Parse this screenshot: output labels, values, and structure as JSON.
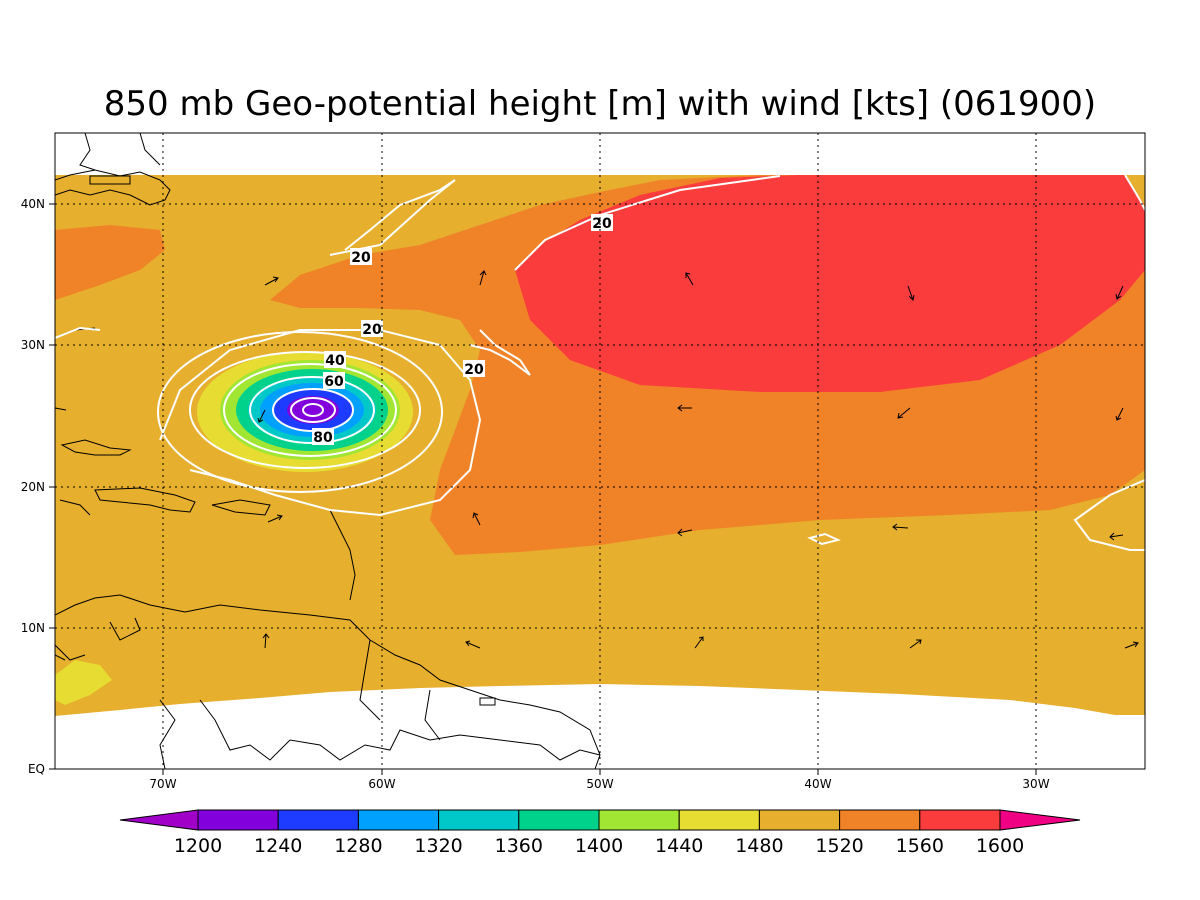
{
  "title": "850 mb Geo-potential height [m] with wind [kts] (061900)",
  "map": {
    "lon_ticks": [
      "70W",
      "60W",
      "50W",
      "40W",
      "30W"
    ],
    "lat_ticks": [
      "EQ",
      "10N",
      "20N",
      "30N",
      "40N"
    ],
    "wind_contour_labels": [
      "20",
      "20",
      "20",
      "20",
      "40",
      "60",
      "80"
    ]
  },
  "colorbar": {
    "levels": [
      "1200",
      "1240",
      "1280",
      "1320",
      "1360",
      "1400",
      "1440",
      "1480",
      "1520",
      "1560",
      "1600"
    ],
    "colors": [
      "#a000c8",
      "#8200dc",
      "#1e3cff",
      "#00a0ff",
      "#00c8c8",
      "#00d28c",
      "#a0e632",
      "#e6dc32",
      "#e6af2d",
      "#f08228",
      "#fa3c3c",
      "#f00082"
    ]
  },
  "field_colors": {
    "low": "#e6dc32",
    "mid": "#e6af2d",
    "high": "#f08228",
    "top": "#fa3c3c",
    "core": "#8200dc"
  }
}
